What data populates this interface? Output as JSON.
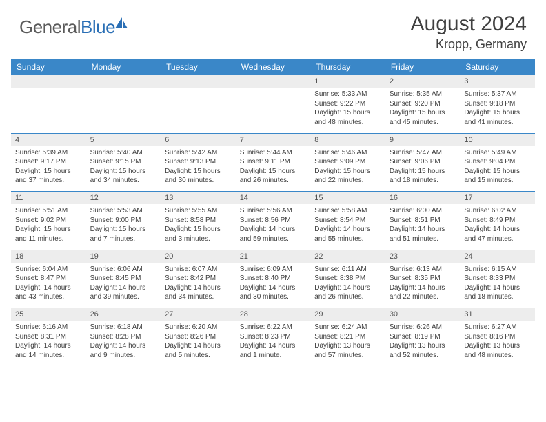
{
  "logo": {
    "word1": "General",
    "word2": "Blue"
  },
  "title": {
    "month": "August 2024",
    "location": "Kropp, Germany"
  },
  "colors": {
    "header_bg": "#3a87c8",
    "header_fg": "#ffffff",
    "daynum_bg": "#ededed",
    "text": "#404040",
    "rule": "#3a87c8"
  },
  "weekdays": [
    "Sunday",
    "Monday",
    "Tuesday",
    "Wednesday",
    "Thursday",
    "Friday",
    "Saturday"
  ],
  "weeks": [
    [
      null,
      null,
      null,
      null,
      {
        "n": "1",
        "sr": "5:33 AM",
        "ss": "9:22 PM",
        "dl": "15 hours and 48 minutes."
      },
      {
        "n": "2",
        "sr": "5:35 AM",
        "ss": "9:20 PM",
        "dl": "15 hours and 45 minutes."
      },
      {
        "n": "3",
        "sr": "5:37 AM",
        "ss": "9:18 PM",
        "dl": "15 hours and 41 minutes."
      }
    ],
    [
      {
        "n": "4",
        "sr": "5:39 AM",
        "ss": "9:17 PM",
        "dl": "15 hours and 37 minutes."
      },
      {
        "n": "5",
        "sr": "5:40 AM",
        "ss": "9:15 PM",
        "dl": "15 hours and 34 minutes."
      },
      {
        "n": "6",
        "sr": "5:42 AM",
        "ss": "9:13 PM",
        "dl": "15 hours and 30 minutes."
      },
      {
        "n": "7",
        "sr": "5:44 AM",
        "ss": "9:11 PM",
        "dl": "15 hours and 26 minutes."
      },
      {
        "n": "8",
        "sr": "5:46 AM",
        "ss": "9:09 PM",
        "dl": "15 hours and 22 minutes."
      },
      {
        "n": "9",
        "sr": "5:47 AM",
        "ss": "9:06 PM",
        "dl": "15 hours and 18 minutes."
      },
      {
        "n": "10",
        "sr": "5:49 AM",
        "ss": "9:04 PM",
        "dl": "15 hours and 15 minutes."
      }
    ],
    [
      {
        "n": "11",
        "sr": "5:51 AM",
        "ss": "9:02 PM",
        "dl": "15 hours and 11 minutes."
      },
      {
        "n": "12",
        "sr": "5:53 AM",
        "ss": "9:00 PM",
        "dl": "15 hours and 7 minutes."
      },
      {
        "n": "13",
        "sr": "5:55 AM",
        "ss": "8:58 PM",
        "dl": "15 hours and 3 minutes."
      },
      {
        "n": "14",
        "sr": "5:56 AM",
        "ss": "8:56 PM",
        "dl": "14 hours and 59 minutes."
      },
      {
        "n": "15",
        "sr": "5:58 AM",
        "ss": "8:54 PM",
        "dl": "14 hours and 55 minutes."
      },
      {
        "n": "16",
        "sr": "6:00 AM",
        "ss": "8:51 PM",
        "dl": "14 hours and 51 minutes."
      },
      {
        "n": "17",
        "sr": "6:02 AM",
        "ss": "8:49 PM",
        "dl": "14 hours and 47 minutes."
      }
    ],
    [
      {
        "n": "18",
        "sr": "6:04 AM",
        "ss": "8:47 PM",
        "dl": "14 hours and 43 minutes."
      },
      {
        "n": "19",
        "sr": "6:06 AM",
        "ss": "8:45 PM",
        "dl": "14 hours and 39 minutes."
      },
      {
        "n": "20",
        "sr": "6:07 AM",
        "ss": "8:42 PM",
        "dl": "14 hours and 34 minutes."
      },
      {
        "n": "21",
        "sr": "6:09 AM",
        "ss": "8:40 PM",
        "dl": "14 hours and 30 minutes."
      },
      {
        "n": "22",
        "sr": "6:11 AM",
        "ss": "8:38 PM",
        "dl": "14 hours and 26 minutes."
      },
      {
        "n": "23",
        "sr": "6:13 AM",
        "ss": "8:35 PM",
        "dl": "14 hours and 22 minutes."
      },
      {
        "n": "24",
        "sr": "6:15 AM",
        "ss": "8:33 PM",
        "dl": "14 hours and 18 minutes."
      }
    ],
    [
      {
        "n": "25",
        "sr": "6:16 AM",
        "ss": "8:31 PM",
        "dl": "14 hours and 14 minutes."
      },
      {
        "n": "26",
        "sr": "6:18 AM",
        "ss": "8:28 PM",
        "dl": "14 hours and 9 minutes."
      },
      {
        "n": "27",
        "sr": "6:20 AM",
        "ss": "8:26 PM",
        "dl": "14 hours and 5 minutes."
      },
      {
        "n": "28",
        "sr": "6:22 AM",
        "ss": "8:23 PM",
        "dl": "14 hours and 1 minute."
      },
      {
        "n": "29",
        "sr": "6:24 AM",
        "ss": "8:21 PM",
        "dl": "13 hours and 57 minutes."
      },
      {
        "n": "30",
        "sr": "6:26 AM",
        "ss": "8:19 PM",
        "dl": "13 hours and 52 minutes."
      },
      {
        "n": "31",
        "sr": "6:27 AM",
        "ss": "8:16 PM",
        "dl": "13 hours and 48 minutes."
      }
    ]
  ],
  "labels": {
    "sunrise": "Sunrise:",
    "sunset": "Sunset:",
    "daylight": "Daylight:"
  }
}
